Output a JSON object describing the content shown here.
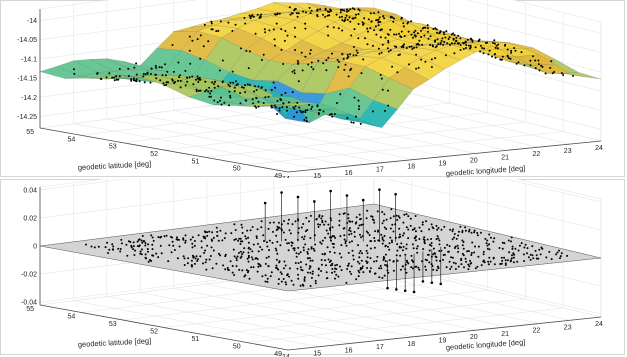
{
  "chart_data": [
    {
      "type": "surface",
      "xlabel": "geodetic longitude [deg]",
      "ylabel": "geodetic latitude [deg]",
      "zlabel": "",
      "xlim": [
        14,
        24
      ],
      "ylim": [
        49,
        55
      ],
      "zlim": [
        -14.28,
        -13.97
      ],
      "xticks": [
        14,
        15,
        16,
        17,
        18,
        19,
        20,
        21,
        22,
        23,
        24
      ],
      "yticks": [
        49,
        50,
        51,
        52,
        53,
        54,
        55
      ],
      "zticks": [
        -14.25,
        -14.2,
        -14.15,
        -14.1,
        -14.05,
        -14
      ],
      "grid": true,
      "colormap": [
        "#3b5fd9",
        "#2c93d8",
        "#1fb3b0",
        "#5cc28c",
        "#a9c65a",
        "#e0b93a",
        "#f2d23a"
      ],
      "marker_color": "#000000",
      "surface_profile": {
        "longitude": [
          14,
          15,
          16,
          17,
          18,
          19,
          20,
          21,
          22,
          23,
          24
        ],
        "value": [
          -14.12,
          -14.12,
          -14.14,
          -14.17,
          -14.08,
          -14.05,
          -14.03,
          -14.02,
          -14.05,
          -14.09,
          -14.1
        ]
      }
    },
    {
      "type": "scatter3d",
      "xlabel": "geodetic longitude [deg]",
      "ylabel": "geodetic latitude [deg]",
      "zlabel": "",
      "xlim": [
        14,
        24
      ],
      "ylim": [
        49,
        55
      ],
      "zlim": [
        -0.042,
        0.042
      ],
      "xticks": [
        14,
        15,
        16,
        17,
        18,
        19,
        20,
        21,
        22,
        23,
        24
      ],
      "yticks": [
        49,
        50,
        51,
        52,
        53,
        54,
        55
      ],
      "zticks": [
        -0.04,
        -0.02,
        0,
        0.02,
        0.04
      ],
      "grid": true,
      "plane_at": 0,
      "plane_color": "#cfcfcf",
      "marker_color": "#000000",
      "outliers": {
        "count_up": 9,
        "max_up": 0.038,
        "count_down": 7,
        "min_down": -0.028
      }
    }
  ]
}
